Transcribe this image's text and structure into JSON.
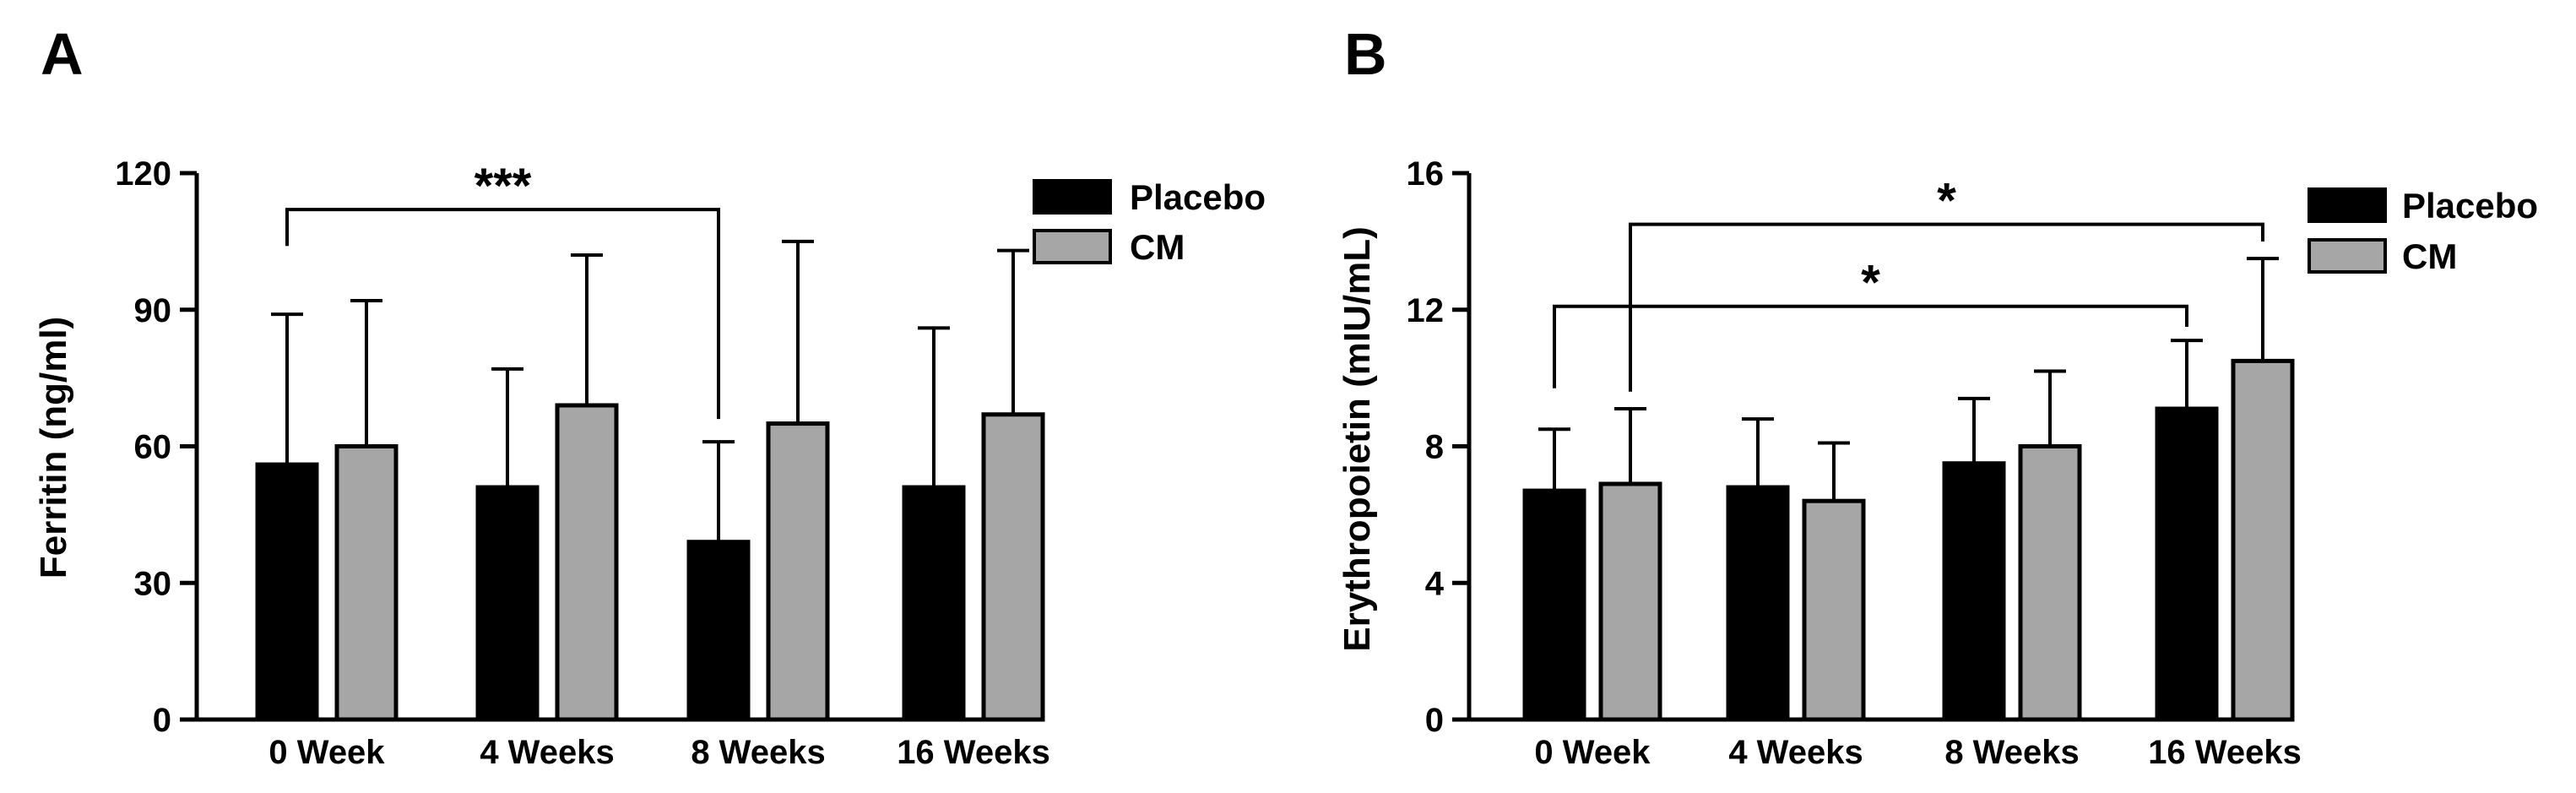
{
  "colors": {
    "placebo": "#000000",
    "cm": "#a6a6a6",
    "outline": "#000000"
  },
  "chart_data": [
    {
      "type": "bar",
      "panel": "A",
      "title": "",
      "xlabel": "",
      "ylabel": "Ferritin (ng/ml)",
      "ylim": [
        0,
        120
      ],
      "yticks": [
        "0",
        "30",
        "60",
        "90",
        "120"
      ],
      "ytick_values": [
        0,
        30,
        60,
        90,
        120
      ],
      "categories": [
        "0 Week",
        "4 Weeks",
        "8 Weeks",
        "16 Weeks"
      ],
      "series": [
        {
          "name": "Placebo",
          "values": [
            56,
            51,
            39,
            51
          ],
          "errors": [
            33,
            26,
            22,
            35
          ]
        },
        {
          "name": "CM",
          "values": [
            60,
            69,
            65,
            67
          ],
          "errors": [
            32,
            33,
            40,
            36
          ]
        }
      ],
      "legend": {
        "position": "top-right",
        "entries": [
          "Placebo",
          "CM"
        ]
      },
      "annotations": [
        {
          "label": "***",
          "from": {
            "category": 0,
            "series": 0
          },
          "to": {
            "category": 2,
            "series": 0
          },
          "y": 112,
          "drop_from": 104,
          "drop_to": 66
        }
      ]
    },
    {
      "type": "bar",
      "panel": "B",
      "title": "",
      "xlabel": "",
      "ylabel": "Erythropoietin (mIU/mL)",
      "ylim": [
        0,
        16
      ],
      "yticks": [
        "0",
        "4",
        "8",
        "12",
        "16"
      ],
      "ytick_values": [
        0,
        4,
        8,
        12,
        16
      ],
      "categories": [
        "0 Week",
        "4 Weeks",
        "8 Weeks",
        "16 Weeks"
      ],
      "series": [
        {
          "name": "Placebo",
          "values": [
            6.7,
            6.8,
            7.5,
            9.1
          ],
          "errors": [
            1.8,
            2.0,
            1.9,
            2.0
          ]
        },
        {
          "name": "CM",
          "values": [
            6.9,
            6.4,
            8.0,
            10.5
          ],
          "errors": [
            2.2,
            1.7,
            2.2,
            3.0
          ]
        }
      ],
      "legend": {
        "position": "top-right",
        "entries": [
          "Placebo",
          "CM"
        ]
      },
      "annotations": [
        {
          "label": "*",
          "from": {
            "category": 0,
            "series": 0
          },
          "to": {
            "category": 3,
            "series": 0
          },
          "y": 12.1,
          "drop_from": 9.7,
          "drop_to": 11.5
        },
        {
          "label": "*",
          "from": {
            "category": 0,
            "series": 1
          },
          "to": {
            "category": 3,
            "series": 1
          },
          "y": 14.5,
          "drop_from": 9.6,
          "drop_to": 14.0
        }
      ]
    }
  ]
}
